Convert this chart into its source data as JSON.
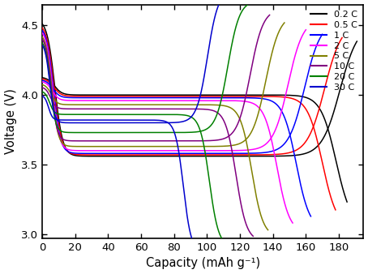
{
  "title": "",
  "xlabel": "Capacity (mAh g⁻¹)",
  "ylabel": "Voltage (V)",
  "xlim": [
    0,
    195
  ],
  "ylim": [
    2.97,
    4.65
  ],
  "xticks": [
    0,
    20,
    40,
    60,
    80,
    100,
    120,
    140,
    160,
    180
  ],
  "yticks": [
    3.0,
    3.5,
    4.0,
    4.5
  ],
  "background": "#ffffff",
  "figsize": [
    4.54,
    3.38
  ],
  "dpi": 100,
  "curves": [
    {
      "label": "0.2 C",
      "color": "#000000",
      "charge_cap": 191,
      "discharge_cap": 185,
      "ch_v0": 4.55,
      "ch_plat": 3.56,
      "ch_rise_start": 0.88,
      "dis_v0": 4.13,
      "dis_plat": 4.0,
      "dis_drop_start": 0.92
    },
    {
      "label": "0.5 C",
      "color": "#ff0000",
      "charge_cap": 182,
      "discharge_cap": 178,
      "ch_v0": 4.52,
      "ch_plat": 3.57,
      "ch_rise_start": 0.87,
      "dis_v0": 4.12,
      "dis_plat": 3.99,
      "dis_drop_start": 0.9
    },
    {
      "label": "1 C",
      "color": "#0000ff",
      "charge_cap": 170,
      "discharge_cap": 163,
      "ch_v0": 4.5,
      "ch_plat": 3.58,
      "ch_rise_start": 0.86,
      "dis_v0": 4.11,
      "dis_plat": 3.98,
      "dis_drop_start": 0.88
    },
    {
      "label": "2 C",
      "color": "#ff00ff",
      "charge_cap": 160,
      "discharge_cap": 152,
      "ch_v0": 4.48,
      "ch_plat": 3.6,
      "ch_rise_start": 0.85,
      "dis_v0": 4.1,
      "dis_plat": 3.96,
      "dis_drop_start": 0.86
    },
    {
      "label": "5 C",
      "color": "#808000",
      "charge_cap": 147,
      "discharge_cap": 137,
      "ch_v0": 4.45,
      "ch_plat": 3.63,
      "ch_rise_start": 0.83,
      "dis_v0": 4.08,
      "dis_plat": 3.93,
      "dis_drop_start": 0.84
    },
    {
      "label": "10 C",
      "color": "#800080",
      "charge_cap": 138,
      "discharge_cap": 128,
      "ch_v0": 4.43,
      "ch_plat": 3.67,
      "ch_rise_start": 0.81,
      "dis_v0": 4.06,
      "dis_plat": 3.9,
      "dis_drop_start": 0.82
    },
    {
      "label": "20 C",
      "color": "#008000",
      "charge_cap": 125,
      "discharge_cap": 112,
      "ch_v0": 4.4,
      "ch_plat": 3.73,
      "ch_rise_start": 0.78,
      "dis_v0": 4.03,
      "dis_plat": 3.86,
      "dis_drop_start": 0.79
    },
    {
      "label": "30 C",
      "color": "#0000cd",
      "charge_cap": 113,
      "discharge_cap": 96,
      "ch_v0": 4.38,
      "ch_plat": 3.8,
      "ch_rise_start": 0.75,
      "dis_v0": 4.0,
      "dis_plat": 3.82,
      "dis_drop_start": 0.76
    }
  ]
}
